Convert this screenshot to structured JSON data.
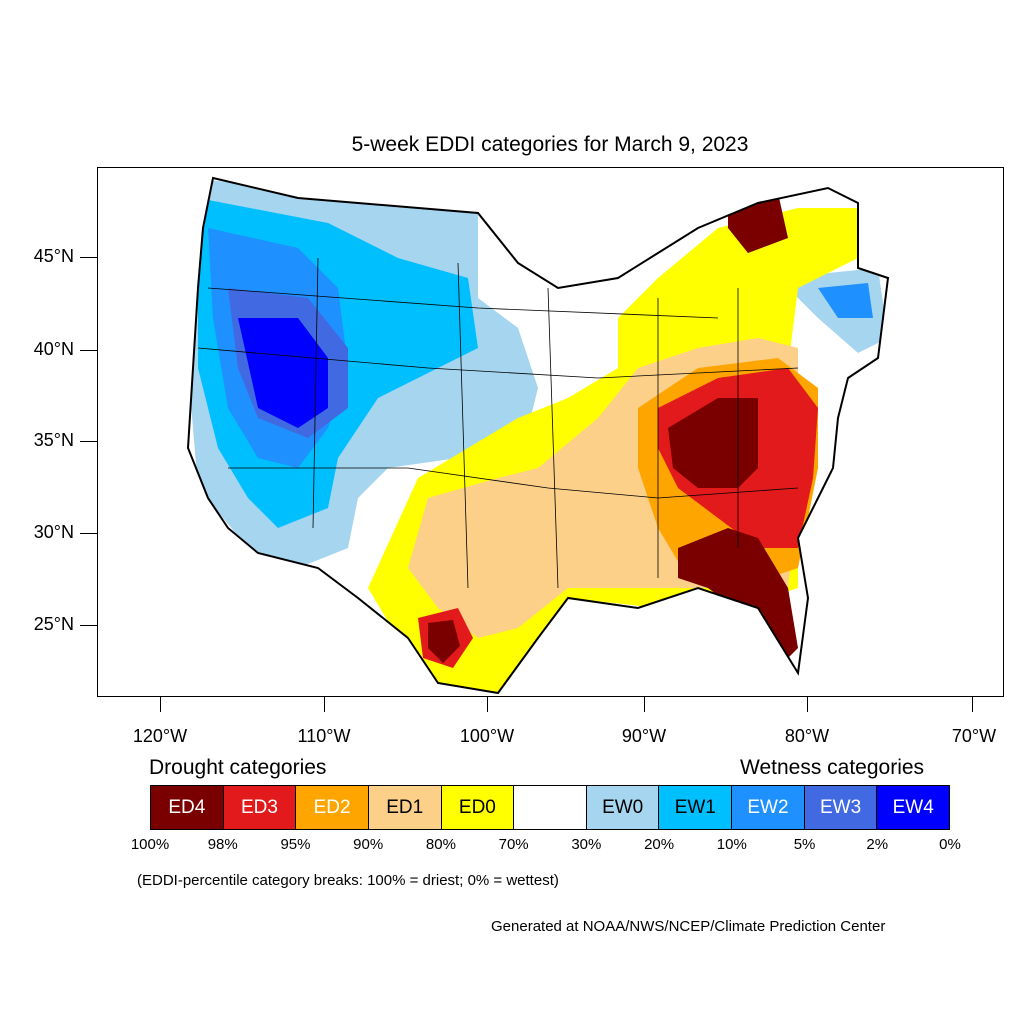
{
  "title": "5-week EDDI categories for March 9, 2023",
  "lat_labels": [
    "45°N",
    "40°N",
    "35°N",
    "30°N",
    "25°N"
  ],
  "lon_labels": [
    "120°W",
    "110°W",
    "100°W",
    "90°W",
    "80°W",
    "70°W"
  ],
  "legend": {
    "drought_heading": "Drought categories",
    "wetness_heading": "Wetness categories",
    "categories": [
      {
        "label": "ED4",
        "color": "#7a0000",
        "text_color": "#ffffff"
      },
      {
        "label": "ED3",
        "color": "#e31a1c",
        "text_color": "#ffffff"
      },
      {
        "label": "ED2",
        "color": "#ffa500",
        "text_color": "#ffffff"
      },
      {
        "label": "ED1",
        "color": "#fdd08a",
        "text_color": "#000000"
      },
      {
        "label": "ED0",
        "color": "#ffff00",
        "text_color": "#000000"
      },
      {
        "label": "",
        "color": "#ffffff",
        "text_color": "#000000"
      },
      {
        "label": "EW0",
        "color": "#a6d5f0",
        "text_color": "#000000"
      },
      {
        "label": "EW1",
        "color": "#00bfff",
        "text_color": "#000000"
      },
      {
        "label": "EW2",
        "color": "#1e90ff",
        "text_color": "#ffffff"
      },
      {
        "label": "EW3",
        "color": "#4169e1",
        "text_color": "#ffffff"
      },
      {
        "label": "EW4",
        "color": "#0000ff",
        "text_color": "#ffffff"
      }
    ],
    "percentiles": [
      "100%",
      "98%",
      "95%",
      "90%",
      "80%",
      "70%",
      "30%",
      "20%",
      "10%",
      "5%",
      "2%",
      "0%"
    ]
  },
  "note": "(EDDI-percentile category breaks: 100% = driest; 0% = wettest)",
  "credit": "Generated at NOAA/NWS/NCEP/Climate Prediction Center"
}
